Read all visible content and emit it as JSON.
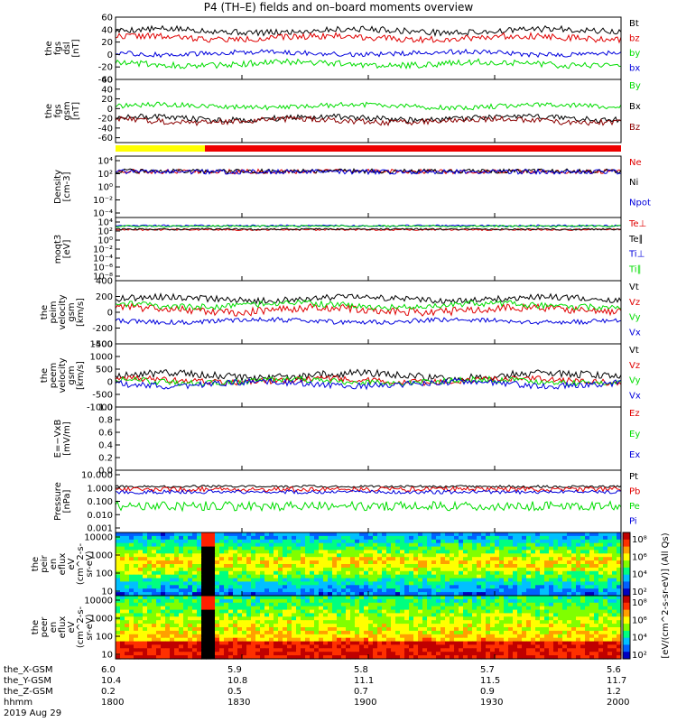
{
  "title": "P4 (TH–E) fields and on–board moments overview",
  "date_label": "2019 Aug 29",
  "chart_data": [
    {
      "type": "line",
      "panel": "fgs_dsl",
      "ylabel_lines": [
        "the",
        "fgs",
        "dsl",
        "[nT]"
      ],
      "ylim": [
        -40,
        60
      ],
      "yticks": [
        -40,
        -20,
        0,
        20,
        40,
        60
      ],
      "series": [
        {
          "name": "Bt",
          "color": "#000000",
          "level": 38,
          "noise": 5
        },
        {
          "name": "bz",
          "color": "#e00000",
          "level": 27,
          "noise": 5
        },
        {
          "name": "by",
          "color": "#00dd00",
          "level": -15,
          "noise": 5
        },
        {
          "name": "bx",
          "color": "#0000dd",
          "level": 2,
          "noise": 4
        }
      ]
    },
    {
      "type": "line",
      "panel": "fgs_gsm",
      "ylabel_lines": [
        "the",
        "fgs",
        "gsm",
        "[nT]"
      ],
      "ylim": [
        -70,
        60
      ],
      "yticks": [
        -60,
        -40,
        -20,
        0,
        20,
        40,
        60
      ],
      "series": [
        {
          "name": "By",
          "color": "#00dd00",
          "level": 5,
          "noise": 5
        },
        {
          "name": "Bx",
          "color": "#000000",
          "level": -20,
          "noise": 6
        },
        {
          "name": "Bz",
          "color": "#8b0000",
          "level": -25,
          "noise": 6
        }
      ]
    },
    {
      "type": "line",
      "panel": "density",
      "ylabel_lines": [
        "Density",
        "[cm-3]"
      ],
      "scale": "log",
      "ylim": [
        0.0001,
        10000
      ],
      "ytick_labels": [
        "10⁴",
        "10²",
        "10⁰",
        "10⁻²",
        "10⁻⁴"
      ],
      "series": [
        {
          "name": "Ne",
          "color": "#e00000",
          "level": 100,
          "noise": 0.3
        },
        {
          "name": "Ni",
          "color": "#000000",
          "level": 110,
          "noise": 0.3
        },
        {
          "name": "Npot",
          "color": "#0000dd",
          "level": 90,
          "noise": 0.3
        }
      ]
    },
    {
      "type": "line",
      "panel": "temperature",
      "ylabel_lines": [
        "moqt3",
        "[eV]"
      ],
      "scale": "log",
      "ylim": [
        1e-09,
        100000.0
      ],
      "ytick_labels": [
        "10⁴",
        "10²",
        "10⁰",
        "10⁻²",
        "10⁻⁴",
        "10⁻⁶",
        "10⁻⁸"
      ],
      "series": [
        {
          "name": "Te⊥",
          "color": "#e00000",
          "level": 200,
          "noise": 0.2
        },
        {
          "name": "Te∥",
          "color": "#000000",
          "level": 250,
          "noise": 0.2
        },
        {
          "name": "Ti⊥",
          "color": "#0000dd",
          "level": 1500,
          "noise": 0.2
        },
        {
          "name": "Ti∥",
          "color": "#00dd00",
          "level": 1200,
          "noise": 0.2
        }
      ]
    },
    {
      "type": "line",
      "panel": "peim_velocity",
      "ylabel_lines": [
        "the",
        "peim",
        "velocity",
        "gsm",
        "[km/s]"
      ],
      "ylim": [
        -400,
        400
      ],
      "yticks": [
        -400,
        -200,
        0,
        200,
        400
      ],
      "series": [
        {
          "name": "Vt",
          "color": "#000000",
          "level": 170,
          "noise": 40
        },
        {
          "name": "Vz",
          "color": "#e00000",
          "level": 30,
          "noise": 50
        },
        {
          "name": "Vy",
          "color": "#00dd00",
          "level": 90,
          "noise": 40
        },
        {
          "name": "Vx",
          "color": "#0000dd",
          "level": -110,
          "noise": 30
        }
      ]
    },
    {
      "type": "line",
      "panel": "peem_velocity",
      "ylabel_lines": [
        "the",
        "peem",
        "velocity",
        "gsm",
        "[km/s]"
      ],
      "ylim": [
        -1000,
        1500
      ],
      "yticks": [
        -1000,
        -500,
        0,
        500,
        1000,
        1500
      ],
      "series": [
        {
          "name": "Vt",
          "color": "#000000",
          "level": 250,
          "noise": 150
        },
        {
          "name": "Vz",
          "color": "#e00000",
          "level": 50,
          "noise": 120
        },
        {
          "name": "Vy",
          "color": "#00dd00",
          "level": 20,
          "noise": 120
        },
        {
          "name": "Vx",
          "color": "#0000dd",
          "level": -80,
          "noise": 130
        }
      ]
    },
    {
      "type": "line",
      "panel": "efield",
      "ylabel_lines": [
        "E=−VxB",
        "[mV/m]"
      ],
      "ylim": [
        0,
        1
      ],
      "yticks": [
        0.0,
        0.2,
        0.4,
        0.6,
        0.8,
        1.0
      ],
      "ytick_labels": [
        "0.0",
        "0.2",
        "0.4",
        "0.6",
        "0.8",
        "1.0"
      ],
      "series": [
        {
          "name": "Ez",
          "color": "#e00000"
        },
        {
          "name": "Ey",
          "color": "#00dd00"
        },
        {
          "name": "Ex",
          "color": "#0000dd"
        }
      ]
    },
    {
      "type": "line",
      "panel": "pressure",
      "ylabel_lines": [
        "Pressure",
        "[nPa]"
      ],
      "scale": "log",
      "ylim": [
        0.001,
        10
      ],
      "ytick_labels": [
        "10.000",
        "1.000",
        "0.100",
        "0.010",
        "0.001"
      ],
      "series": [
        {
          "name": "Pt",
          "color": "#000000",
          "level": 0.9,
          "noise": 0.08
        },
        {
          "name": "Pb",
          "color": "#e00000",
          "level": 0.6,
          "noise": 0.15
        },
        {
          "name": "Pe",
          "color": "#00dd00",
          "level": 0.05,
          "noise": 0.3
        },
        {
          "name": "Pi",
          "color": "#0000dd",
          "level": 0.4,
          "noise": 0.12
        }
      ]
    },
    {
      "type": "heatmap",
      "panel": "peir_eflux",
      "ylabel_lines": [
        "the",
        "peir",
        "en",
        "eflux",
        "eV",
        "(cm^2-s-",
        "sr-eV)"
      ],
      "scale": "log",
      "ylim": [
        5,
        30000
      ],
      "ytick_labels": [
        "10000",
        "1000",
        "100",
        "10"
      ]
    },
    {
      "type": "heatmap",
      "panel": "peer_eflux",
      "ylabel_lines": [
        "the",
        "peer",
        "en",
        "eflux",
        "eV",
        "(cm^2-s-",
        "sr-eV)"
      ],
      "scale": "log",
      "ylim": [
        5,
        30000
      ],
      "ytick_labels": [
        "10000",
        "1000",
        "100",
        "10"
      ]
    }
  ],
  "colorbar": {
    "label": "[eV/(cm^2-s-sr-eV)] (All Qs)",
    "upper_ticks": [
      "10⁸",
      "10⁶",
      "10⁴",
      "10²"
    ],
    "lower_ticks": [
      "10⁸",
      "10⁶",
      "10⁴",
      "10²"
    ]
  },
  "footer": {
    "rows": [
      {
        "label": "the_X-GSM",
        "values": [
          "6.0",
          "5.9",
          "5.8",
          "5.7",
          "5.6"
        ]
      },
      {
        "label": "the_Y-GSM",
        "values": [
          "10.4",
          "10.8",
          "11.1",
          "11.5",
          "11.7"
        ]
      },
      {
        "label": "the_Z-GSM",
        "values": [
          "0.2",
          "0.5",
          "0.7",
          "0.9",
          "1.2"
        ]
      },
      {
        "label": "hhmm",
        "values": [
          "1800",
          "1830",
          "1900",
          "1930",
          "2000"
        ]
      }
    ]
  },
  "colors": {
    "mode_bar_yellow": "#ffff00",
    "mode_bar_red": "#ee0000"
  }
}
